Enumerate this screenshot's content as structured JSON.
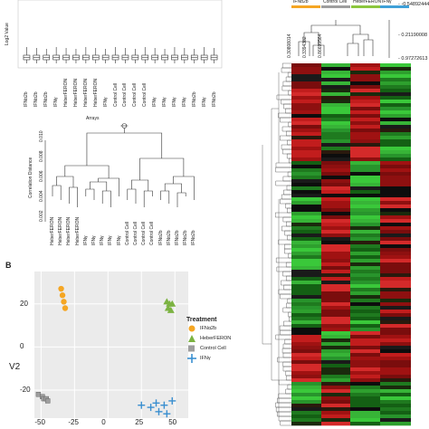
{
  "boxplot": {
    "ylabel": "Log2 Value",
    "samples": [
      "IFNα2b",
      "IFNα2b",
      "IFNα2b",
      "IFNγ",
      "HeberFERON",
      "HeberFERON",
      "HeberFERON",
      "HeberFERON",
      "IFNγ",
      "Control Cell",
      "Control Cell",
      "Control Cell",
      "Control Cell",
      "IFNγ",
      "IFNγ",
      "IFNγ",
      "IFNγ",
      "IFNα2b",
      "IFNγ",
      "IFNα2b"
    ]
  },
  "dendrogram": {
    "title": "Arrays",
    "ylabel": "Correlation Distance",
    "yticks": [
      "0.002",
      "0.004",
      "0.006",
      "0.008",
      "0.010"
    ],
    "leaves": [
      "HeberFERON",
      "HeberFERON",
      "HeberFERON",
      "HeberFERON",
      "IFNγ",
      "IFNγ",
      "IFNγ",
      "IFNγ",
      "IFNγ",
      "Control Cell",
      "Control Cell",
      "Control Cell",
      "Control Cell",
      "IFNα2b",
      "IFNα2b",
      "IFNα2b",
      "IFNα2b",
      "IFNα2b"
    ]
  },
  "heatmap": {
    "groups": [
      {
        "label": "IFNα2b",
        "color": "#f5a623"
      },
      {
        "label": "Control Cell",
        "color": "#9e9e9e"
      },
      {
        "label": "HeberFERON",
        "color": "#8cc63f"
      },
      {
        "label": "IFNγ",
        "color": "#3fa0d8"
      }
    ],
    "scale_right": [
      "-0.54892444",
      "0.21190008",
      "0.97272613"
    ],
    "scale_top": [
      "0.30808014",
      "0.3394382",
      "0.86699564"
    ]
  },
  "panel_b": {
    "letter": "B",
    "ylabel": "V2",
    "xticks": [
      "-50",
      "-25",
      "0",
      "25",
      "50"
    ],
    "yticks": [
      "20",
      "0",
      "-20"
    ],
    "legend_title": "Treatment",
    "legend": [
      {
        "label": "IFNα2b",
        "color": "#f5a623",
        "shape": "circle"
      },
      {
        "label": "HeberFERON",
        "color": "#7cb342",
        "shape": "triangle"
      },
      {
        "label": "Control Cell",
        "color": "#9e9e9e",
        "shape": "square"
      },
      {
        "label": "IFNγ",
        "color": "#3a8fd0",
        "shape": "cross"
      }
    ]
  },
  "chart_data": [
    {
      "type": "scatter",
      "xlabel": "",
      "ylabel": "V2",
      "xlim": [
        -55,
        60
      ],
      "ylim": [
        -33,
        35
      ],
      "series": [
        {
          "name": "IFNα2b",
          "points": [
            [
              -35,
              27
            ],
            [
              -34,
              24
            ],
            [
              -33,
              21
            ],
            [
              -32,
              18
            ]
          ]
        },
        {
          "name": "HeberFERON",
          "points": [
            [
              44,
              21
            ],
            [
              46,
              20
            ],
            [
              48,
              20
            ],
            [
              45,
              18
            ],
            [
              47,
              17
            ]
          ]
        },
        {
          "name": "Control Cell",
          "points": [
            [
              -52,
              -22
            ],
            [
              -49,
              -23
            ],
            [
              -48,
              -24
            ],
            [
              -46,
              -24
            ],
            [
              -45,
              -25
            ]
          ]
        },
        {
          "name": "IFNγ",
          "points": [
            [
              25,
              -27
            ],
            [
              32,
              -28
            ],
            [
              38,
              -30
            ],
            [
              42,
              -27
            ],
            [
              48,
              -25
            ],
            [
              44,
              -31
            ],
            [
              36,
              -26
            ]
          ]
        }
      ]
    }
  ]
}
